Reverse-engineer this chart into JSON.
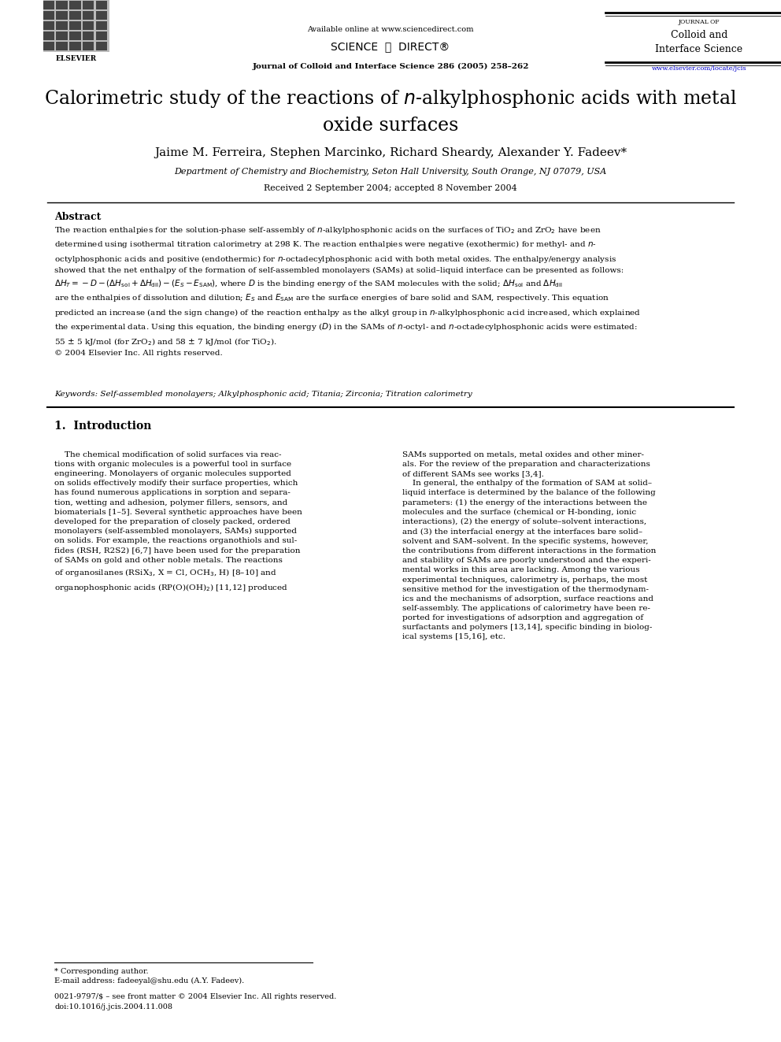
{
  "background_color": "#ffffff",
  "header": {
    "available_online": "Available online at www.sciencedirect.com",
    "journal_name_bold": "Journal of Colloid and Interface Science 286 (2005) 258–262",
    "journal_title_small": "JOURNAL OF",
    "journal_title_large1": "Colloid and",
    "journal_title_large2": "Interface Science",
    "url": "www.elsevier.com/locate/jcis"
  },
  "title": "Calorimetric study of the reactions of $n$-alkylphosphonic acids with metal\noxide surfaces",
  "authors": "Jaime M. Ferreira, Stephen Marcinko, Richard Sheardy, Alexander Y. Fadeev*",
  "affiliation": "Department of Chemistry and Biochemistry, Seton Hall University, South Orange, NJ 07079, USA",
  "received": "Received 2 September 2004; accepted 8 November 2004",
  "abstract_title": "Abstract",
  "keywords": "Keywords: Self-assembled monolayers; Alkylphosphonic acid; Titania; Zirconia; Titration calorimetry",
  "section1_title": "1.  Introduction",
  "footnote_star": "* Corresponding author.",
  "footnote_email": "E-mail address: fadeeyal@shu.edu (A.Y. Fadeev).",
  "footnote_issn": "0021-9797/$ – see front matter © 2004 Elsevier Inc. All rights reserved.",
  "footnote_doi": "doi:10.1016/j.jcis.2004.11.008",
  "url_color": "#0000cc",
  "link_color": "#0000cc"
}
